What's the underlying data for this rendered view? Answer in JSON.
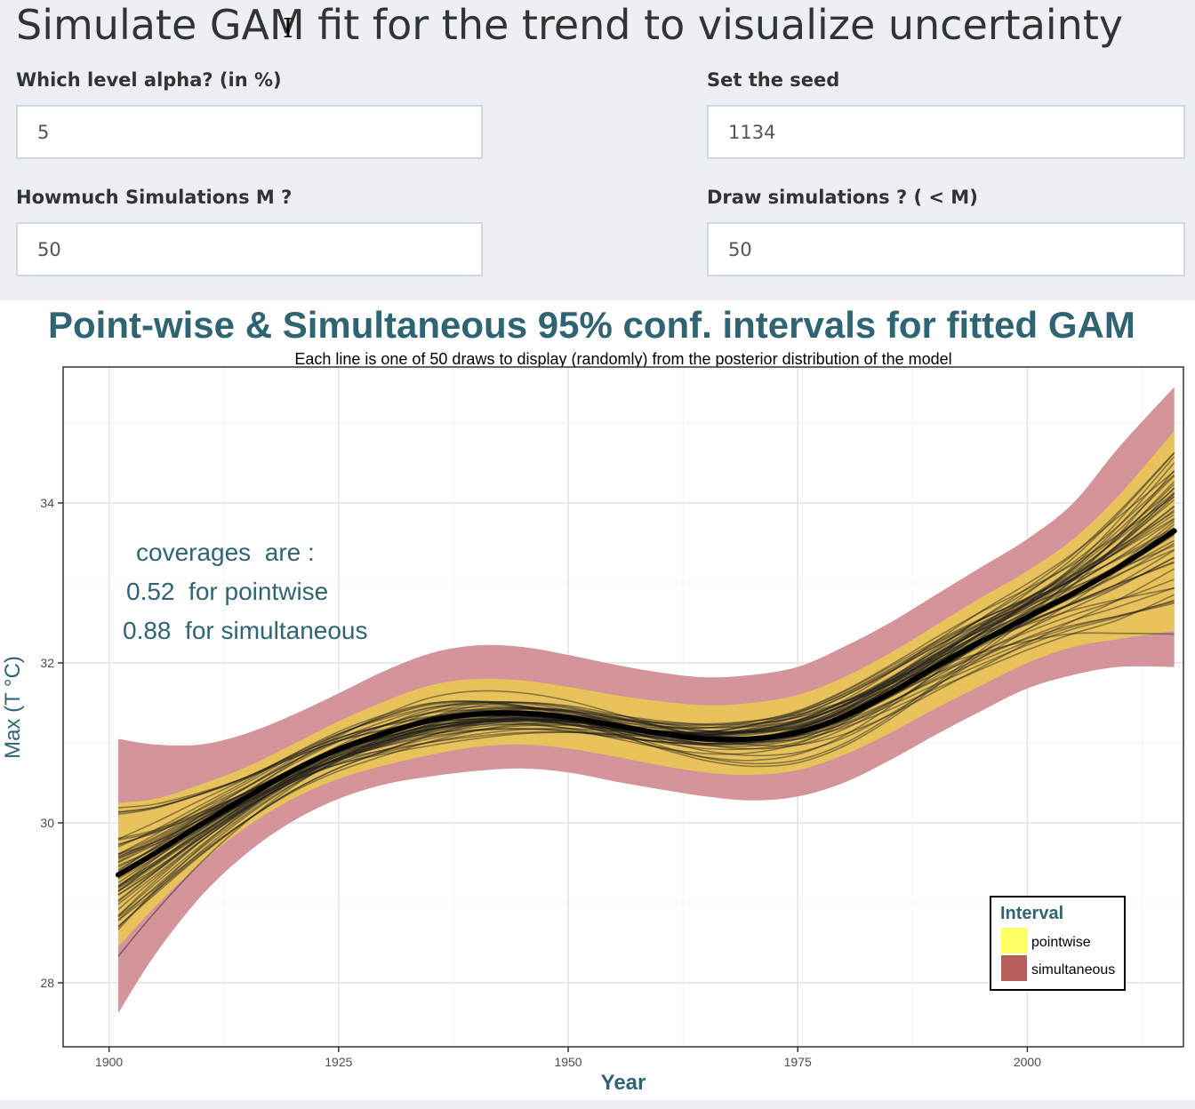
{
  "page": {
    "title": "Simulate GAM fit for the trend to visualize uncertainty"
  },
  "inputs": {
    "alpha": {
      "label": "Which level alpha? (in %)",
      "value": "5"
    },
    "seed": {
      "label": "Set the seed",
      "value": "1134"
    },
    "simulations": {
      "label": "Howmuch Simulations M ?",
      "value": "50"
    },
    "draw": {
      "label": "Draw simulations ? ( < M)",
      "value": "50"
    }
  },
  "chart_data": {
    "type": "line",
    "title": "Point-wise & Simultaneous 95% conf. intervals for fitted GAM",
    "subtitle": "Each line is one of 50 draws to display (randomly) from the posterior distribution of the model",
    "xlabel": "Year",
    "ylabel": "Max (T °C)",
    "xlim": [
      1895,
      2017
    ],
    "ylim": [
      27.2,
      35.7
    ],
    "xticks": [
      1900,
      1925,
      1950,
      1975,
      2000
    ],
    "yticks": [
      28,
      30,
      32,
      34
    ],
    "grid": true,
    "annotation": [
      "coverages  are :",
      "0.52  for pointwise",
      "0.88  for simultaneous"
    ],
    "legend": {
      "title": "Interval",
      "position": "bottom-right",
      "entries": [
        {
          "label": "pointwise",
          "color": "#ffff66"
        },
        {
          "label": "simultaneous",
          "color": "#b85c5c"
        }
      ]
    },
    "x": [
      1901,
      1905,
      1910,
      1915,
      1920,
      1925,
      1930,
      1935,
      1940,
      1945,
      1950,
      1955,
      1960,
      1965,
      1970,
      1975,
      1980,
      1985,
      1990,
      1995,
      2000,
      2005,
      2010,
      2016
    ],
    "fit": [
      29.35,
      29.62,
      29.98,
      30.32,
      30.65,
      30.92,
      31.12,
      31.28,
      31.36,
      31.37,
      31.32,
      31.22,
      31.12,
      31.05,
      31.05,
      31.13,
      31.33,
      31.62,
      31.95,
      32.27,
      32.57,
      32.87,
      33.2,
      33.65
    ],
    "pointwise_lower": [
      28.45,
      28.95,
      29.5,
      29.95,
      30.3,
      30.55,
      30.72,
      30.85,
      30.95,
      30.98,
      30.93,
      30.83,
      30.72,
      30.63,
      30.6,
      30.66,
      30.85,
      31.12,
      31.43,
      31.72,
      32.0,
      32.2,
      32.3,
      32.4
    ],
    "pointwise_upper": [
      30.25,
      30.3,
      30.48,
      30.7,
      30.98,
      31.27,
      31.52,
      31.72,
      31.8,
      31.78,
      31.7,
      31.6,
      31.52,
      31.47,
      31.5,
      31.6,
      31.82,
      32.12,
      32.47,
      32.82,
      33.15,
      33.55,
      34.1,
      34.9
    ],
    "simultaneous_lower": [
      27.62,
      28.35,
      29.08,
      29.62,
      30.02,
      30.3,
      30.48,
      30.58,
      30.65,
      30.68,
      30.63,
      30.52,
      30.42,
      30.33,
      30.28,
      30.33,
      30.5,
      30.78,
      31.1,
      31.4,
      31.68,
      31.85,
      31.95,
      31.95
    ],
    "simultaneous_upper": [
      31.05,
      30.98,
      30.98,
      31.12,
      31.35,
      31.62,
      31.9,
      32.12,
      32.22,
      32.2,
      32.1,
      31.98,
      31.88,
      31.82,
      31.85,
      31.95,
      32.2,
      32.5,
      32.85,
      33.2,
      33.55,
      34.0,
      34.7,
      35.45
    ],
    "draws": 50,
    "colors": {
      "simultaneous_band": "#d4959a",
      "pointwise_band": "#e8c25a",
      "fit_line": "#000000",
      "draw_lines": "#1a1a1a",
      "title_color": "#2f6472"
    }
  }
}
